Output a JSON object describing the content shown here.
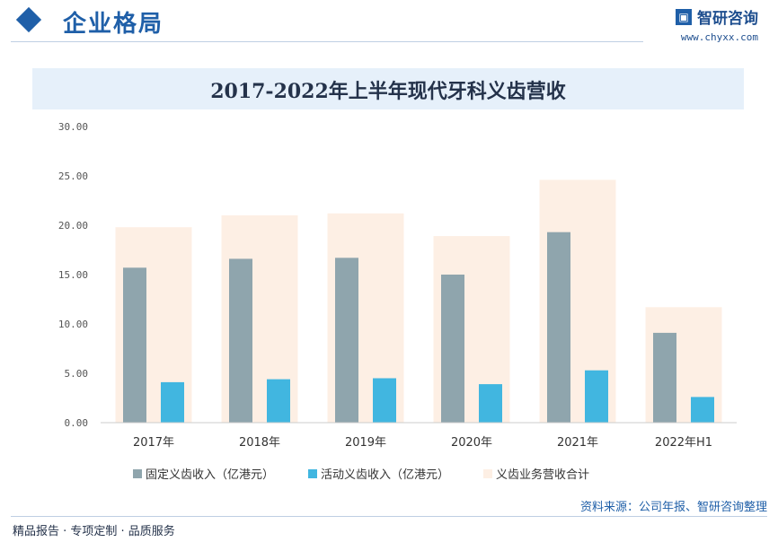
{
  "header": {
    "section_title": "企业格局",
    "brand_name": "智研咨询",
    "brand_url": "www.chyxx.com",
    "logo_icon": "zhiyan-logo-icon"
  },
  "chart_data": {
    "type": "bar",
    "title": "2017-2022年上半年现代牙科义齿营收",
    "categories": [
      "2017年",
      "2018年",
      "2019年",
      "2020年",
      "2021年",
      "2022年H1"
    ],
    "series": [
      {
        "name": "固定义齿收入（亿港元）",
        "values": [
          15.7,
          16.6,
          16.7,
          15.0,
          19.3,
          9.1
        ],
        "color": "#8fa5ad"
      },
      {
        "name": "活动义齿收入（亿港元）",
        "values": [
          4.1,
          4.4,
          4.5,
          3.9,
          5.3,
          2.6
        ],
        "color": "#41b6e0"
      },
      {
        "name": "义齿业务营收合计",
        "values": [
          19.8,
          21.0,
          21.2,
          18.9,
          24.6,
          11.7
        ],
        "color": "#fdefe4"
      }
    ],
    "ylim": [
      0,
      30
    ],
    "yticks": [
      "0.00",
      "5.00",
      "10.00",
      "15.00",
      "20.00",
      "25.00",
      "30.00"
    ],
    "ytick_values": [
      0,
      5,
      10,
      15,
      20,
      25,
      30
    ],
    "legend_position": "bottom",
    "grid": false
  },
  "legend": {
    "items": [
      "固定义齿收入（亿港元）",
      "活动义齿收入（亿港元）",
      "义齿业务营收合计"
    ]
  },
  "source_text": "资料来源：公司年报、智研咨询整理",
  "footer_text": "精品报告 · 专项定制 · 品质服务"
}
